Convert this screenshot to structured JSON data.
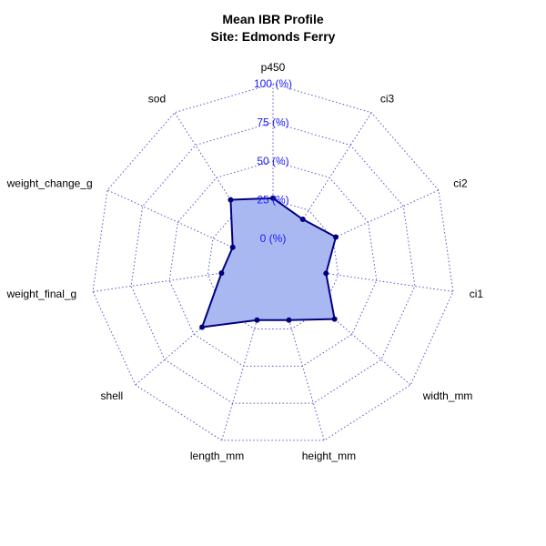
{
  "chart_data": {
    "type": "radar",
    "title": "Mean IBR Profile",
    "subtitle": "Site: Edmonds Ferry",
    "axes": [
      "p450",
      "ci3",
      "ci2",
      "ci1",
      "width_mm",
      "height_mm",
      "length_mm",
      "shell",
      "weight_final_g",
      "weight_change_g",
      "sod"
    ],
    "values": [
      26,
      18,
      27,
      17,
      35,
      19,
      19,
      43,
      16,
      11,
      33
    ],
    "rlim": [
      0,
      100
    ],
    "grid_levels": [
      0,
      25,
      50,
      75,
      100
    ],
    "tick_labels": [
      "0 (%)",
      "25 (%)",
      "50 (%)",
      "75 (%)",
      "100 (%)"
    ],
    "grid": true,
    "colors": {
      "fill": "#aab8f2",
      "line": "#00007f",
      "grid": "#5555cc",
      "tick_text": "#1a1aff"
    }
  }
}
